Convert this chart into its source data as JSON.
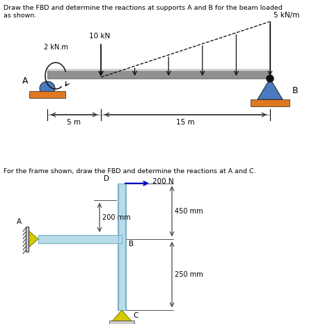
{
  "bg_color": "#ffffff",
  "text_color": "#000000",
  "fig_width": 4.54,
  "fig_height": 4.66,
  "top_text1": "Draw the FBD and determine the reactions at supports A and B for the beam loaded",
  "top_text2": "as shown.",
  "bottom_text": "For the frame shown, draw the FBD and determine the reactions at A and C.",
  "beam_gray": "#b0b0b0",
  "beam_light": "#d8d8d8",
  "beam_edge": "#555555",
  "orange_color": "#e07820",
  "blue_support": "#4a7abf",
  "dark": "#111111",
  "frame_fill": "#b8dce8",
  "frame_edge": "#7ab0c8",
  "yellow": "#d4c800",
  "yellow_edge": "#888800",
  "arrow_blue": "#0000cc",
  "dim_line": "#333333"
}
